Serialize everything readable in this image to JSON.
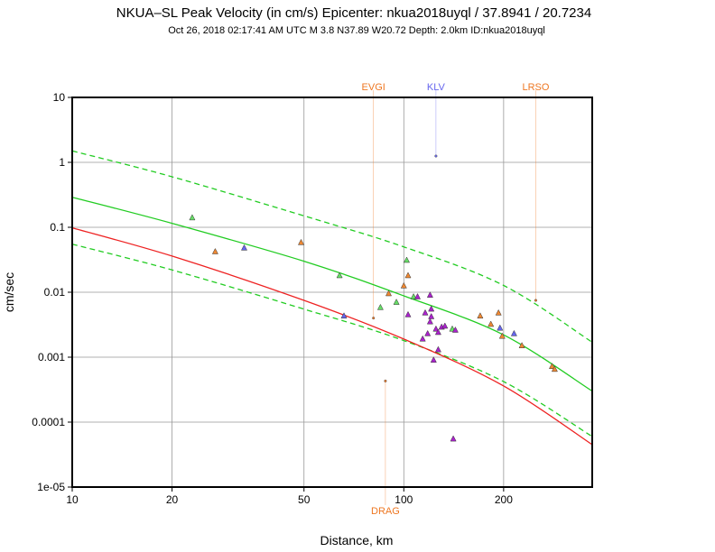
{
  "chart_data": {
    "type": "scatter",
    "title": "NKUA–SL Peak Velocity (in cm/s) Epicenter: nkua2018uyql / 37.8941 / 20.7234",
    "subtitle": "Oct 26, 2018 02:17:41 AM UTC   M 3.8    N37.89 W20.72   Depth: 2.0km   ID:nkua2018uyql",
    "xlabel": "Distance, km",
    "ylabel": "cm/sec",
    "xscale": "log",
    "yscale": "log",
    "xlim": [
      10,
      370
    ],
    "ylim": [
      1e-05,
      10
    ],
    "grid": true,
    "x_ticks": [
      10,
      20,
      50,
      100,
      200
    ],
    "x_tick_labels": [
      "10",
      "20",
      "50",
      "100",
      "200"
    ],
    "y_ticks": [
      10,
      1,
      0.1,
      0.01,
      0.001,
      0.0001,
      1e-05
    ],
    "y_tick_labels": [
      "10",
      "1",
      "0.1",
      "0.01",
      "0.001",
      "0.0001",
      "1e-05"
    ],
    "curves": [
      {
        "name": "upper bound",
        "style": "dashed",
        "color": "#22cc22",
        "x": [
          10,
          20,
          50,
          100,
          200,
          370
        ],
        "y": [
          1.5,
          0.6,
          0.15,
          0.05,
          0.0127,
          0.0017
        ]
      },
      {
        "name": "median",
        "style": "solid",
        "color": "#22cc22",
        "x": [
          10,
          20,
          50,
          100,
          200,
          370
        ],
        "y": [
          0.29,
          0.115,
          0.03,
          0.0088,
          0.0022,
          0.0003
        ]
      },
      {
        "name": "lower bound",
        "style": "dashed",
        "color": "#22cc22",
        "x": [
          10,
          20,
          50,
          100,
          200,
          370
        ],
        "y": [
          0.055,
          0.022,
          0.0055,
          0.0018,
          0.00042,
          6e-05
        ]
      },
      {
        "name": "red curve",
        "style": "solid",
        "color": "#ee2222",
        "x": [
          10,
          20,
          50,
          100,
          200,
          370
        ],
        "y": [
          0.098,
          0.036,
          0.0075,
          0.0019,
          0.00036,
          4.5e-05
        ]
      }
    ],
    "series": [
      {
        "name": "green stations",
        "color": "#66dd66",
        "points": [
          [
            23,
            0.14
          ],
          [
            64,
            0.018
          ],
          [
            85,
            0.0058
          ],
          [
            95,
            0.007
          ],
          [
            102,
            0.031
          ],
          [
            107,
            0.0085
          ],
          [
            140,
            0.0027
          ]
        ]
      },
      {
        "name": "orange stations",
        "color": "#ee8833",
        "points": [
          [
            27,
            0.042
          ],
          [
            49,
            0.058
          ],
          [
            90,
            0.0095
          ],
          [
            100,
            0.0125
          ],
          [
            103,
            0.018
          ],
          [
            170,
            0.0043
          ],
          [
            183,
            0.0032
          ],
          [
            193,
            0.0048
          ],
          [
            198,
            0.0021
          ],
          [
            227,
            0.0015
          ],
          [
            280,
            0.00072
          ],
          [
            285,
            0.00065
          ]
        ]
      },
      {
        "name": "blue stations",
        "color": "#6666ee",
        "points": [
          [
            33,
            0.048
          ],
          [
            66,
            0.0043
          ],
          [
            195,
            0.0028
          ],
          [
            215,
            0.0023
          ]
        ]
      },
      {
        "name": "purple stations",
        "color": "#aa22cc",
        "points": [
          [
            103,
            0.0045
          ],
          [
            110,
            0.0085
          ],
          [
            114,
            0.0019
          ],
          [
            118,
            0.0023
          ],
          [
            116,
            0.0048
          ],
          [
            120,
            0.0035
          ],
          [
            120,
            0.009
          ],
          [
            121,
            0.0042
          ],
          [
            121,
            0.0055
          ],
          [
            123,
            0.0009
          ],
          [
            125,
            0.0027
          ],
          [
            127,
            0.0024
          ],
          [
            127,
            0.0013
          ],
          [
            130,
            0.0029
          ],
          [
            133,
            0.003
          ],
          [
            143,
            0.0026
          ],
          [
            141,
            5.5e-05
          ]
        ]
      }
    ],
    "station_markers": [
      {
        "label": "EVGI",
        "x": 81,
        "y": 0.004,
        "color": "#ee7722",
        "label_position": "top"
      },
      {
        "label": "KLV",
        "x": 125,
        "y": 1.25,
        "color": "#6666ee",
        "label_position": "top"
      },
      {
        "label": "LRSO",
        "x": 250,
        "y": 0.0075,
        "color": "#ee7722",
        "label_position": "top"
      },
      {
        "label": "DRAG",
        "x": 88,
        "y": 0.00043,
        "color": "#ee7722",
        "label_position": "bottom"
      }
    ]
  }
}
